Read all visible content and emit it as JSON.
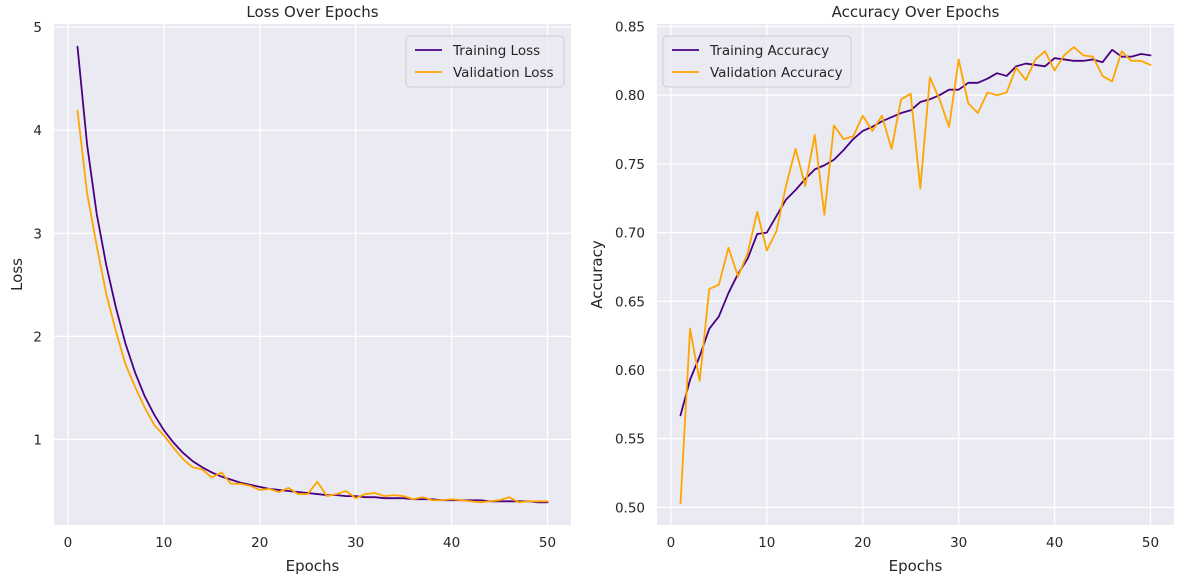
{
  "chart_data": [
    {
      "type": "line",
      "title": "Loss Over Epochs",
      "xlabel": "Epochs",
      "ylabel": "Loss",
      "xlim": [
        -1.45,
        52.45
      ],
      "ylim": [
        0.17,
        5.03
      ],
      "x_ticks": [
        0,
        10,
        20,
        30,
        40,
        50
      ],
      "y_ticks": [
        1,
        2,
        3,
        4,
        5
      ],
      "grid": true,
      "legend_position": "upper right",
      "x": [
        1,
        2,
        3,
        4,
        5,
        6,
        7,
        8,
        9,
        10,
        11,
        12,
        13,
        14,
        15,
        16,
        17,
        18,
        19,
        20,
        21,
        22,
        23,
        24,
        25,
        26,
        27,
        28,
        29,
        30,
        31,
        32,
        33,
        34,
        35,
        36,
        37,
        38,
        39,
        40,
        41,
        42,
        43,
        44,
        45,
        46,
        47,
        48,
        49,
        50
      ],
      "series": [
        {
          "name": "Training Loss",
          "color": "#4b0082",
          "values": [
            4.81,
            3.86,
            3.19,
            2.69,
            2.28,
            1.93,
            1.65,
            1.42,
            1.24,
            1.09,
            0.97,
            0.87,
            0.79,
            0.73,
            0.68,
            0.64,
            0.61,
            0.58,
            0.56,
            0.54,
            0.52,
            0.51,
            0.5,
            0.49,
            0.48,
            0.47,
            0.46,
            0.46,
            0.45,
            0.45,
            0.44,
            0.44,
            0.43,
            0.43,
            0.43,
            0.42,
            0.42,
            0.42,
            0.41,
            0.41,
            0.41,
            0.41,
            0.41,
            0.4,
            0.4,
            0.4,
            0.4,
            0.4,
            0.39,
            0.39
          ]
        },
        {
          "name": "Validation Loss",
          "color": "#ffa500",
          "values": [
            4.19,
            3.39,
            2.88,
            2.41,
            2.05,
            1.73,
            1.51,
            1.31,
            1.14,
            1.04,
            0.92,
            0.81,
            0.73,
            0.71,
            0.63,
            0.68,
            0.57,
            0.57,
            0.55,
            0.51,
            0.52,
            0.49,
            0.53,
            0.47,
            0.47,
            0.59,
            0.45,
            0.47,
            0.5,
            0.43,
            0.47,
            0.48,
            0.45,
            0.46,
            0.45,
            0.42,
            0.44,
            0.41,
            0.41,
            0.42,
            0.41,
            0.4,
            0.39,
            0.4,
            0.41,
            0.44,
            0.39,
            0.4,
            0.4,
            0.4
          ]
        }
      ]
    },
    {
      "type": "line",
      "title": "Accuracy Over Epochs",
      "xlabel": "Epochs",
      "ylabel": "Accuracy",
      "xlim": [
        -1.45,
        52.45
      ],
      "ylim": [
        0.4872,
        0.8518
      ],
      "x_ticks": [
        0,
        10,
        20,
        30,
        40,
        50
      ],
      "y_ticks": [
        0.5,
        0.55,
        0.6,
        0.65,
        0.7,
        0.75,
        0.8,
        0.85
      ],
      "y_tick_labels": [
        "0.50",
        "0.55",
        "0.60",
        "0.65",
        "0.70",
        "0.75",
        "0.80",
        "0.85"
      ],
      "grid": true,
      "legend_position": "upper left",
      "x": [
        1,
        2,
        3,
        4,
        5,
        6,
        7,
        8,
        9,
        10,
        11,
        12,
        13,
        14,
        15,
        16,
        17,
        18,
        19,
        20,
        21,
        22,
        23,
        24,
        25,
        26,
        27,
        28,
        29,
        30,
        31,
        32,
        33,
        34,
        35,
        36,
        37,
        38,
        39,
        40,
        41,
        42,
        43,
        44,
        45,
        46,
        47,
        48,
        49,
        50
      ],
      "series": [
        {
          "name": "Training Accuracy",
          "color": "#4b0082",
          "values": [
            0.567,
            0.593,
            0.61,
            0.63,
            0.639,
            0.656,
            0.67,
            0.681,
            0.699,
            0.7,
            0.712,
            0.724,
            0.731,
            0.739,
            0.746,
            0.749,
            0.753,
            0.76,
            0.768,
            0.774,
            0.777,
            0.781,
            0.784,
            0.787,
            0.789,
            0.795,
            0.797,
            0.8,
            0.804,
            0.804,
            0.809,
            0.809,
            0.812,
            0.816,
            0.814,
            0.821,
            0.823,
            0.822,
            0.821,
            0.827,
            0.826,
            0.825,
            0.825,
            0.826,
            0.824,
            0.833,
            0.828,
            0.828,
            0.83,
            0.829
          ]
        },
        {
          "name": "Validation Accuracy",
          "color": "#ffa500",
          "values": [
            0.503,
            0.63,
            0.592,
            0.659,
            0.662,
            0.689,
            0.668,
            0.685,
            0.715,
            0.687,
            0.701,
            0.734,
            0.761,
            0.734,
            0.771,
            0.713,
            0.778,
            0.768,
            0.77,
            0.785,
            0.774,
            0.785,
            0.761,
            0.797,
            0.801,
            0.732,
            0.813,
            0.797,
            0.777,
            0.826,
            0.794,
            0.787,
            0.802,
            0.8,
            0.802,
            0.82,
            0.811,
            0.826,
            0.832,
            0.818,
            0.829,
            0.835,
            0.829,
            0.828,
            0.814,
            0.81,
            0.832,
            0.825,
            0.825,
            0.822
          ]
        }
      ]
    }
  ]
}
